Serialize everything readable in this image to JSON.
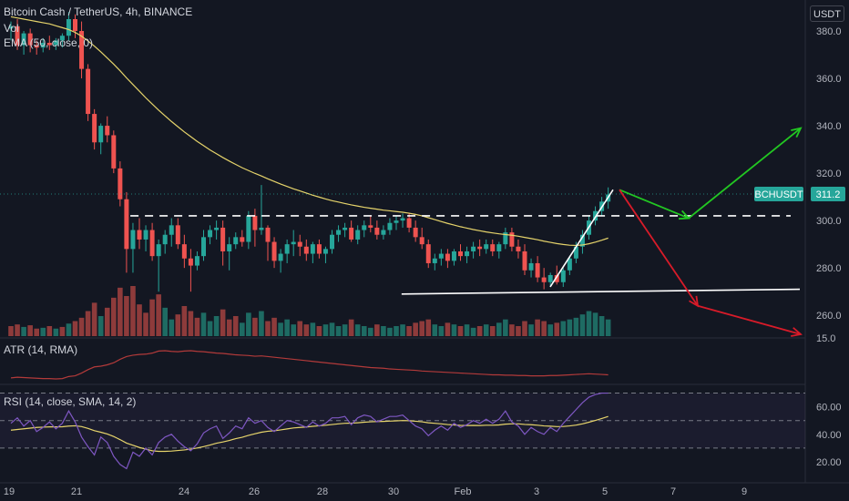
{
  "header": {
    "title": "Bitcoin Cash / TetherUS, 4h, BINANCE",
    "vol_label": "Vol",
    "ema_label": "EMA (50, close, 0)",
    "currency": "USDT"
  },
  "atr": {
    "label": "ATR (14, RMA)"
  },
  "rsi": {
    "label": "RSI (14, close, SMA, 14, 2)"
  },
  "colors": {
    "background": "#131722",
    "up": "#26a69a",
    "down": "#ef5350",
    "vol_up": "#1e6b63",
    "vol_down": "#8e3b3b",
    "ema": "#e6d46b",
    "atr": "#b23a3a",
    "rsi": "#7e57c2",
    "rsi_ma": "#e6d46b",
    "bullish_arrow": "#22c722",
    "bearish_arrow": "#d81b29",
    "price_tag": "#26a69a"
  },
  "chart_data": {
    "type": "candlestick",
    "symbol": "BCHUSDT",
    "last_price": "311.2",
    "x_tick_labels": [
      "19",
      "21",
      "24",
      "26",
      "28",
      "30",
      "Feb",
      "3",
      "5",
      "7",
      "9"
    ],
    "y_tick_labels": [
      "380.0",
      "360.0",
      "340.0",
      "320.0",
      "300.0",
      "280.0",
      "260.0"
    ],
    "y_range": [
      252,
      390
    ],
    "rsi_tick_labels": [
      "60.00",
      "40.00",
      "20.00"
    ],
    "rsi_range": [
      10,
      75
    ],
    "rsi_band": [
      30,
      70
    ],
    "atr_partial_label": "15.0",
    "support_level": 302,
    "support_line": {
      "from": [
        10.8,
        269
      ],
      "to": [
        29.4,
        271
      ]
    },
    "scenario_up": [
      [
        27.9,
        313
      ],
      [
        31.5,
        301
      ],
      [
        33.6,
        339
      ]
    ],
    "scenario_down": [
      [
        27.9,
        313
      ],
      [
        30.6,
        264
      ],
      [
        34.4,
        252
      ]
    ],
    "breakout_trendline": [
      [
        25.3,
        272
      ],
      [
        27.6,
        313
      ]
    ],
    "candles_ohlc": [
      [
        381,
        384,
        376,
        382
      ],
      [
        382,
        385,
        372,
        374
      ],
      [
        374,
        380,
        370,
        379
      ],
      [
        379,
        381,
        371,
        374
      ],
      [
        374,
        376,
        370,
        373
      ],
      [
        373,
        377,
        371,
        375
      ],
      [
        375,
        378,
        372,
        374
      ],
      [
        374,
        377,
        372,
        376
      ],
      [
        376,
        379,
        373,
        378
      ],
      [
        378,
        388,
        376,
        385
      ],
      [
        385,
        387,
        377,
        380
      ],
      [
        380,
        384,
        360,
        364
      ],
      [
        364,
        366,
        342,
        345
      ],
      [
        345,
        347,
        330,
        333
      ],
      [
        333,
        341,
        328,
        340
      ],
      [
        340,
        344,
        333,
        336
      ],
      [
        336,
        338,
        320,
        322
      ],
      [
        322,
        325,
        306,
        309
      ],
      [
        309,
        312,
        278,
        288
      ],
      [
        288,
        299,
        278,
        296
      ],
      [
        296,
        301,
        288,
        292
      ],
      [
        292,
        298,
        287,
        296
      ],
      [
        296,
        299,
        283,
        285
      ],
      [
        285,
        292,
        270,
        290
      ],
      [
        290,
        296,
        286,
        294
      ],
      [
        294,
        301,
        289,
        298
      ],
      [
        298,
        301,
        288,
        290
      ],
      [
        290,
        294,
        280,
        284
      ],
      [
        284,
        288,
        270,
        281
      ],
      [
        281,
        287,
        279,
        285
      ],
      [
        285,
        296,
        283,
        293
      ],
      [
        293,
        298,
        290,
        296
      ],
      [
        296,
        300,
        292,
        297
      ],
      [
        297,
        300,
        281,
        287
      ],
      [
        287,
        293,
        279,
        290
      ],
      [
        290,
        295,
        288,
        293
      ],
      [
        293,
        296,
        289,
        291
      ],
      [
        291,
        304,
        288,
        302
      ],
      [
        302,
        305,
        289,
        296
      ],
      [
        296,
        315,
        294,
        297
      ],
      [
        297,
        298,
        283,
        291
      ],
      [
        291,
        293,
        280,
        283
      ],
      [
        283,
        288,
        278,
        286
      ],
      [
        286,
        292,
        282,
        290
      ],
      [
        290,
        296,
        285,
        291
      ],
      [
        291,
        294,
        285,
        289
      ],
      [
        289,
        292,
        283,
        286
      ],
      [
        286,
        291,
        282,
        290
      ],
      [
        290,
        292,
        284,
        286
      ],
      [
        286,
        289,
        282,
        288
      ],
      [
        288,
        296,
        286,
        294
      ],
      [
        294,
        298,
        291,
        296
      ],
      [
        296,
        299,
        293,
        297
      ],
      [
        297,
        300,
        291,
        292
      ],
      [
        292,
        298,
        290,
        296
      ],
      [
        296,
        300,
        293,
        298
      ],
      [
        298,
        302,
        295,
        297
      ],
      [
        297,
        300,
        292,
        294
      ],
      [
        294,
        298,
        292,
        296
      ],
      [
        296,
        301,
        294,
        299
      ],
      [
        299,
        302,
        296,
        300
      ],
      [
        300,
        303,
        297,
        301
      ],
      [
        301,
        303,
        295,
        297
      ],
      [
        297,
        300,
        291,
        293
      ],
      [
        293,
        297,
        288,
        290
      ],
      [
        290,
        292,
        280,
        282
      ],
      [
        282,
        286,
        279,
        284
      ],
      [
        284,
        288,
        281,
        286
      ],
      [
        286,
        288,
        280,
        283
      ],
      [
        283,
        288,
        281,
        287
      ],
      [
        287,
        290,
        283,
        285
      ],
      [
        285,
        289,
        282,
        287
      ],
      [
        287,
        291,
        284,
        289
      ],
      [
        289,
        292,
        285,
        288
      ],
      [
        288,
        292,
        286,
        290
      ],
      [
        290,
        292,
        285,
        287
      ],
      [
        287,
        291,
        284,
        290
      ],
      [
        290,
        297,
        288,
        295
      ],
      [
        295,
        297,
        287,
        289
      ],
      [
        289,
        292,
        284,
        287
      ],
      [
        287,
        290,
        277,
        279
      ],
      [
        279,
        284,
        276,
        282
      ],
      [
        282,
        285,
        274,
        276
      ],
      [
        276,
        280,
        271,
        274
      ],
      [
        274,
        278,
        272,
        277
      ],
      [
        277,
        281,
        273,
        274
      ],
      [
        274,
        280,
        272,
        279
      ],
      [
        279,
        285,
        277,
        284
      ],
      [
        284,
        291,
        282,
        289
      ],
      [
        289,
        296,
        286,
        294
      ],
      [
        294,
        302,
        292,
        300
      ],
      [
        300,
        306,
        298,
        304
      ],
      [
        304,
        310,
        302,
        308
      ],
      [
        308,
        314,
        305,
        311
      ]
    ],
    "volume_bars": [
      [
        12,
        1
      ],
      [
        14,
        1
      ],
      [
        11,
        0
      ],
      [
        13,
        1
      ],
      [
        9,
        1
      ],
      [
        10,
        0
      ],
      [
        12,
        1
      ],
      [
        9,
        0
      ],
      [
        11,
        1
      ],
      [
        15,
        0
      ],
      [
        18,
        1
      ],
      [
        22,
        1
      ],
      [
        30,
        1
      ],
      [
        40,
        1
      ],
      [
        24,
        0
      ],
      [
        34,
        1
      ],
      [
        46,
        1
      ],
      [
        58,
        1
      ],
      [
        48,
        1
      ],
      [
        60,
        1
      ],
      [
        38,
        1
      ],
      [
        28,
        1
      ],
      [
        44,
        1
      ],
      [
        50,
        1
      ],
      [
        34,
        0
      ],
      [
        20,
        0
      ],
      [
        26,
        1
      ],
      [
        36,
        1
      ],
      [
        30,
        1
      ],
      [
        22,
        1
      ],
      [
        28,
        0
      ],
      [
        18,
        0
      ],
      [
        24,
        0
      ],
      [
        32,
        1
      ],
      [
        20,
        1
      ],
      [
        24,
        1
      ],
      [
        16,
        0
      ],
      [
        28,
        0
      ],
      [
        22,
        1
      ],
      [
        30,
        0
      ],
      [
        18,
        1
      ],
      [
        22,
        1
      ],
      [
        16,
        0
      ],
      [
        20,
        0
      ],
      [
        14,
        0
      ],
      [
        18,
        1
      ],
      [
        14,
        1
      ],
      [
        16,
        0
      ],
      [
        12,
        1
      ],
      [
        14,
        0
      ],
      [
        16,
        0
      ],
      [
        12,
        0
      ],
      [
        14,
        0
      ],
      [
        20,
        1
      ],
      [
        14,
        0
      ],
      [
        12,
        0
      ],
      [
        10,
        0
      ],
      [
        14,
        1
      ],
      [
        12,
        0
      ],
      [
        10,
        0
      ],
      [
        12,
        0
      ],
      [
        14,
        0
      ],
      [
        12,
        1
      ],
      [
        16,
        1
      ],
      [
        18,
        1
      ],
      [
        20,
        1
      ],
      [
        14,
        0
      ],
      [
        12,
        0
      ],
      [
        16,
        1
      ],
      [
        14,
        0
      ],
      [
        12,
        1
      ],
      [
        14,
        0
      ],
      [
        10,
        0
      ],
      [
        12,
        1
      ],
      [
        14,
        0
      ],
      [
        12,
        1
      ],
      [
        16,
        0
      ],
      [
        20,
        0
      ],
      [
        14,
        1
      ],
      [
        12,
        1
      ],
      [
        18,
        1
      ],
      [
        14,
        0
      ],
      [
        20,
        1
      ],
      [
        18,
        1
      ],
      [
        14,
        0
      ],
      [
        16,
        1
      ],
      [
        18,
        0
      ],
      [
        20,
        0
      ],
      [
        22,
        0
      ],
      [
        26,
        0
      ],
      [
        30,
        0
      ],
      [
        28,
        0
      ],
      [
        24,
        0
      ],
      [
        20,
        0
      ]
    ],
    "ema_values": [
      386,
      385.5,
      385,
      384.5,
      384,
      383.5,
      383,
      382.2,
      381.4,
      380.6,
      379.4,
      377.8,
      375.8,
      373.6,
      371.2,
      368.6,
      366,
      363.2,
      360.2,
      357.4,
      354.6,
      351.8,
      349.2,
      346.6,
      344.2,
      341.8,
      339.6,
      337.4,
      335.4,
      333.4,
      331.6,
      329.8,
      328.2,
      326.6,
      325.1,
      323.7,
      322.3,
      321.1,
      319.9,
      318.8,
      317.6,
      316.5,
      315.4,
      314.4,
      313.4,
      312.5,
      311.6,
      310.7,
      309.9,
      309.1,
      308.4,
      307.8,
      307.2,
      306.6,
      306.1,
      305.6,
      305.2,
      304.8,
      304.4,
      304.1,
      303.8,
      303.5,
      303.1,
      302.6,
      302,
      301.2,
      300.4,
      299.6,
      298.8,
      298.1,
      297.4,
      296.8,
      296.2,
      295.7,
      295.2,
      294.8,
      294.4,
      294.1,
      293.8,
      293.4,
      292.9,
      292.4,
      291.9,
      291.3,
      290.8,
      290.3,
      289.9,
      289.6,
      289.5,
      289.7,
      290.2,
      290.9,
      291.7,
      292.6
    ],
    "atr_values": [
      8,
      8.2,
      8.1,
      8,
      7.9,
      7.8,
      7.8,
      7.7,
      7.8,
      8.4,
      8.6,
      9.4,
      10.4,
      11.2,
      11.4,
      11.8,
      12.4,
      13.4,
      14.2,
      14.6,
      14.8,
      14.9,
      15.2,
      15.8,
      15.9,
      15.7,
      15.6,
      15.8,
      15.9,
      15.7,
      15.6,
      15.4,
      15.2,
      15.1,
      14.9,
      14.7,
      14.6,
      14.5,
      14.3,
      14.4,
      14.2,
      14,
      13.8,
      13.6,
      13.4,
      13.2,
      13,
      12.8,
      12.6,
      12.4,
      12.2,
      12,
      11.8,
      11.6,
      11.4,
      11.2,
      11,
      10.9,
      10.8,
      10.6,
      10.5,
      10.4,
      10.3,
      10.2,
      10,
      9.9,
      9.8,
      9.7,
      9.6,
      9.5,
      9.4,
      9.3,
      9.2,
      9.1,
      9,
      8.9,
      8.9,
      8.8,
      8.8,
      8.7,
      8.7,
      8.6,
      8.6,
      8.6,
      8.7,
      8.7,
      8.8,
      8.9,
      9,
      9.1,
      9.2,
      9.1,
      9,
      8.9
    ],
    "rsi_values": [
      48,
      52,
      46,
      50,
      42,
      45,
      49,
      44,
      48,
      57,
      49,
      38,
      31,
      25,
      38,
      34,
      24,
      18,
      15,
      27,
      24,
      30,
      25,
      34,
      38,
      40,
      35,
      31,
      28,
      33,
      41,
      44,
      46,
      37,
      41,
      46,
      44,
      52,
      48,
      50,
      45,
      42,
      46,
      50,
      49,
      47,
      45,
      49,
      46,
      48,
      52,
      52,
      53,
      47,
      52,
      54,
      53,
      49,
      51,
      53,
      53,
      54,
      50,
      46,
      44,
      39,
      43,
      46,
      43,
      48,
      45,
      47,
      50,
      48,
      51,
      48,
      51,
      57,
      49,
      46,
      40,
      45,
      42,
      40,
      45,
      42,
      48,
      53,
      58,
      63,
      67,
      69,
      70,
      70
    ],
    "rsi_ma_values": [
      43,
      43.5,
      44,
      44.5,
      45,
      45.2,
      45.4,
      45.4,
      45.5,
      46,
      46.2,
      45.6,
      44.3,
      42.6,
      41.5,
      40.2,
      38.4,
      36.1,
      33.6,
      32,
      30.4,
      29.2,
      28,
      27.6,
      27.6,
      27.8,
      28.2,
      28.6,
      29.2,
      30,
      31,
      32.2,
      33.5,
      34.4,
      35.5,
      36.8,
      37.8,
      39.2,
      40.4,
      41.5,
      42.2,
      42.6,
      43.2,
      43.9,
      44.6,
      45,
      45.3,
      45.8,
      46.2,
      46.6,
      47.1,
      47.6,
      48,
      48.1,
      48.4,
      48.8,
      49.1,
      49.3,
      49.4,
      49.6,
      49.8,
      50,
      49.9,
      49.5,
      49.1,
      48.4,
      48,
      47.6,
      47.1,
      46.8,
      46.5,
      46.4,
      46.5,
      46.4,
      46.6,
      46.6,
      46.8,
      47.4,
      47.6,
      47.6,
      47.2,
      47,
      46.6,
      46.1,
      45.9,
      45.6,
      45.7,
      46.1,
      46.7,
      47.6,
      48.8,
      50.1,
      51.5,
      53
    ]
  }
}
